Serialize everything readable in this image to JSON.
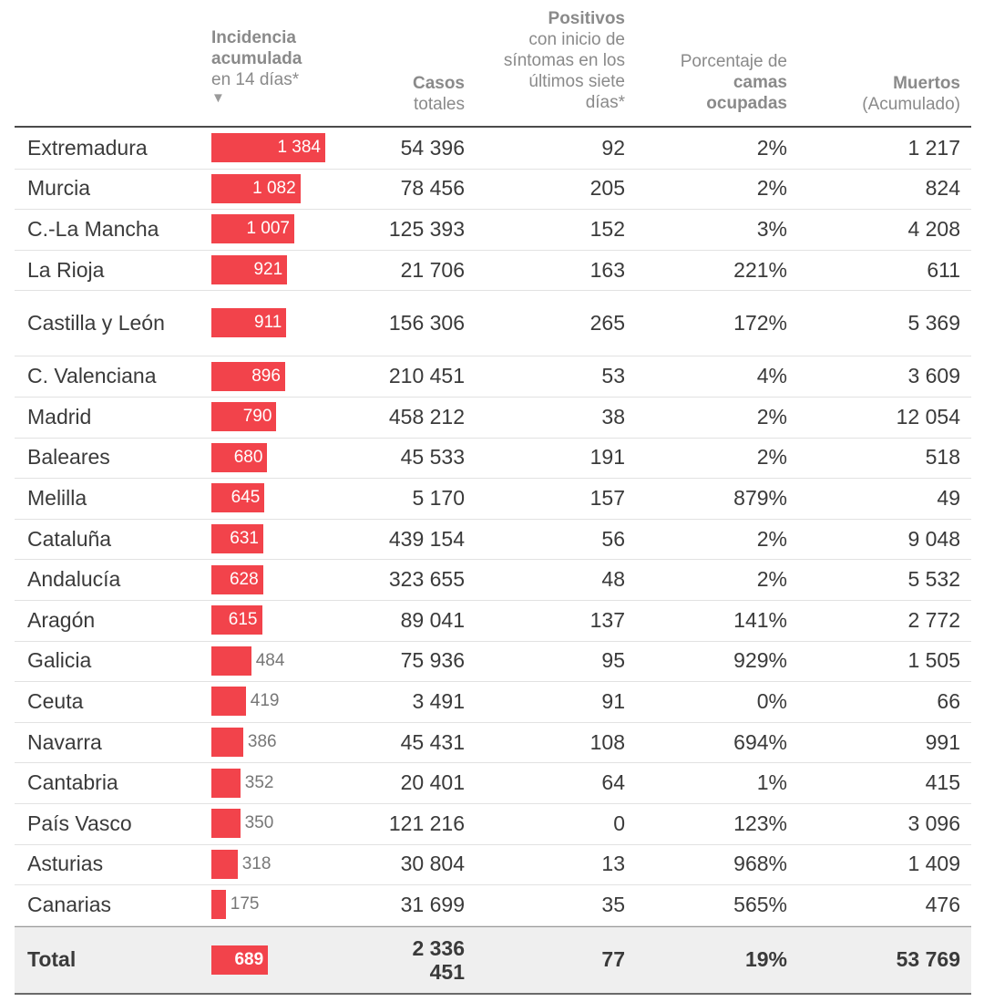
{
  "chart_data": {
    "type": "table",
    "headers": {
      "incidencia": {
        "bold": "Incidencia acumulada",
        "normal": "en 14 días*",
        "caret": "▼"
      },
      "casos": {
        "bold": "Casos",
        "normal": "totales"
      },
      "positivos": {
        "bold": "Positivos",
        "normal": "con inicio de síntomas en los últimos siete días*"
      },
      "camas": {
        "pre": "Porcentaje de ",
        "bold": "camas ocupadas"
      },
      "muertos": {
        "bold": "Muertos",
        "normal": "(Acumulado)"
      }
    },
    "rows": [
      {
        "name": "Extremadura",
        "incidencia": 1384,
        "incidencia_label": "1 384",
        "casos": "54 396",
        "positivos": "92",
        "camas": "2%",
        "muertos": "1 217"
      },
      {
        "name": "Murcia",
        "incidencia": 1082,
        "incidencia_label": "1 082",
        "casos": "78 456",
        "positivos": "205",
        "camas": "2%",
        "muertos": "824"
      },
      {
        "name": "C.-La Mancha",
        "incidencia": 1007,
        "incidencia_label": "1 007",
        "casos": "125 393",
        "positivos": "152",
        "camas": "3%",
        "muertos": "4 208"
      },
      {
        "name": "La Rioja",
        "incidencia": 921,
        "incidencia_label": "921",
        "casos": "21 706",
        "positivos": "163",
        "camas": "221%",
        "muertos": "611"
      },
      {
        "name": "Castilla y León",
        "incidencia": 911,
        "incidencia_label": "911",
        "casos": "156 306",
        "positivos": "265",
        "camas": "172%",
        "muertos": "5 369",
        "tall": true
      },
      {
        "name": "C. Valenciana",
        "incidencia": 896,
        "incidencia_label": "896",
        "casos": "210 451",
        "positivos": "53",
        "camas": "4%",
        "muertos": "3 609"
      },
      {
        "name": "Madrid",
        "incidencia": 790,
        "incidencia_label": "790",
        "casos": "458 212",
        "positivos": "38",
        "camas": "2%",
        "muertos": "12 054"
      },
      {
        "name": "Baleares",
        "incidencia": 680,
        "incidencia_label": "680",
        "casos": "45 533",
        "positivos": "191",
        "camas": "2%",
        "muertos": "518"
      },
      {
        "name": "Melilla",
        "incidencia": 645,
        "incidencia_label": "645",
        "casos": "5 170",
        "positivos": "157",
        "camas": "879%",
        "muertos": "49"
      },
      {
        "name": "Cataluña",
        "incidencia": 631,
        "incidencia_label": "631",
        "casos": "439 154",
        "positivos": "56",
        "camas": "2%",
        "muertos": "9 048"
      },
      {
        "name": "Andalucía",
        "incidencia": 628,
        "incidencia_label": "628",
        "casos": "323 655",
        "positivos": "48",
        "camas": "2%",
        "muertos": "5 532"
      },
      {
        "name": "Aragón",
        "incidencia": 615,
        "incidencia_label": "615",
        "casos": "89 041",
        "positivos": "137",
        "camas": "141%",
        "muertos": "2 772"
      },
      {
        "name": "Galicia",
        "incidencia": 484,
        "incidencia_label": "484",
        "casos": "75 936",
        "positivos": "95",
        "camas": "929%",
        "muertos": "1 505"
      },
      {
        "name": "Ceuta",
        "incidencia": 419,
        "incidencia_label": "419",
        "casos": "3 491",
        "positivos": "91",
        "camas": "0%",
        "muertos": "66"
      },
      {
        "name": "Navarra",
        "incidencia": 386,
        "incidencia_label": "386",
        "casos": "45 431",
        "positivos": "108",
        "camas": "694%",
        "muertos": "991"
      },
      {
        "name": "Cantabria",
        "incidencia": 352,
        "incidencia_label": "352",
        "casos": "20 401",
        "positivos": "64",
        "camas": "1%",
        "muertos": "415"
      },
      {
        "name": "País Vasco",
        "incidencia": 350,
        "incidencia_label": "350",
        "casos": "121 216",
        "positivos": "0",
        "camas": "123%",
        "muertos": "3 096"
      },
      {
        "name": "Asturias",
        "incidencia": 318,
        "incidencia_label": "318",
        "casos": "30 804",
        "positivos": "13",
        "camas": "968%",
        "muertos": "1 409"
      },
      {
        "name": "Canarias",
        "incidencia": 175,
        "incidencia_label": "175",
        "casos": "31 699",
        "positivos": "35",
        "camas": "565%",
        "muertos": "476"
      }
    ],
    "total": {
      "name": "Total",
      "incidencia": 689,
      "incidencia_label": "689",
      "casos_line1": "2 336",
      "casos_line2": "451",
      "positivos": "77",
      "camas": "19%",
      "muertos": "53 769"
    },
    "bar_color": "#f2434b"
  }
}
